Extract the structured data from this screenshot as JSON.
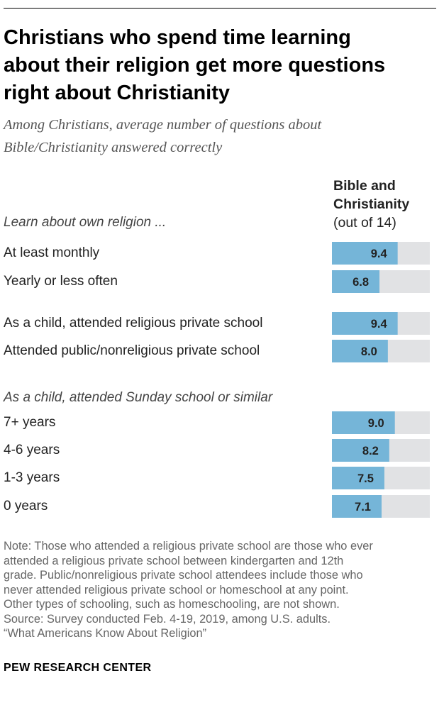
{
  "header": {
    "title_lines": [
      "Christians who spend time learning",
      "about their religion get more questions",
      "right about Christianity"
    ],
    "subtitle_lines": [
      "Among Christians, average number of questions about",
      "Bible/Christianity answered correctly"
    ]
  },
  "column_header": {
    "line1": "Bible and",
    "line2": "Christianity",
    "line3": "(out of 14)"
  },
  "sections": {
    "learn": "Learn about own religion ...",
    "sunday": "As a child, attended Sunday school or similar"
  },
  "chart_data": {
    "type": "bar",
    "title": "Christians who spend time learning about their religion get more questions right about Christianity",
    "subtitle": "Among Christians, average number of questions about Bible/Christianity answered correctly",
    "series_name": "Bible and Christianity (out of 14)",
    "max": 14,
    "categories": [
      "At least monthly",
      "Yearly or less often",
      "As a child, attended religious private school",
      "Attended public/nonreligious private school",
      "7+ years",
      "4-6 years",
      "1-3 years",
      "0 years"
    ],
    "values": [
      9.4,
      6.8,
      9.4,
      8.0,
      9.0,
      8.2,
      7.5,
      7.1
    ],
    "value_labels": [
      "9.4",
      "6.8",
      "9.4",
      "8.0",
      "9.0",
      "8.2",
      "7.5",
      "7.1"
    ],
    "colors": {
      "bar": "#75b5d8",
      "track": "#e1e2e4",
      "label": "#222222"
    }
  },
  "footer": {
    "note_lines": [
      "Note: Those who attended a religious private school are those who ever",
      "attended a religious private school between kindergarten and 12th",
      "grade. Public/nonreligious private school attendees include those who",
      "never attended religious private school or homeschool at any point.",
      "Other types of schooling, such as homeschooling, are not shown.",
      "Source: Survey conducted Feb. 4-19, 2019, among U.S. adults.",
      "“What Americans Know About Religion”"
    ],
    "brand": "PEW RESEARCH CENTER"
  }
}
